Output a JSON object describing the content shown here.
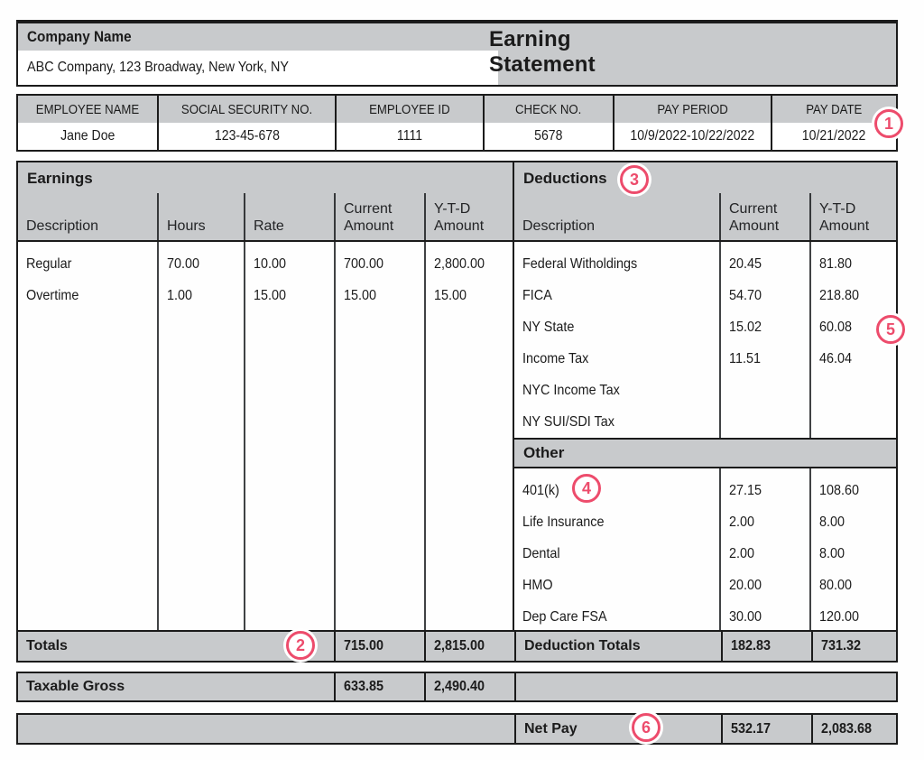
{
  "meta": {
    "accent_color": "#ed4c6c",
    "band_color": "#c8cacc"
  },
  "header": {
    "company_label": "Company Name",
    "company_address": "ABC Company, 123 Broadway, New York, NY",
    "statement_title_line1": "Earning",
    "statement_title_line2": "Statement"
  },
  "employee_info": {
    "headers": [
      "EMPLOYEE NAME",
      "SOCIAL SECURITY NO.",
      "EMPLOYEE ID",
      "CHECK NO.",
      "PAY PERIOD",
      "PAY DATE"
    ],
    "values": [
      "Jane Doe",
      "123-45-678",
      "1111",
      "5678",
      "10/9/2022-10/22/2022",
      "10/21/2022"
    ]
  },
  "earnings": {
    "title": "Earnings",
    "columns": [
      "Description",
      "Hours",
      "Rate",
      "Current Amount",
      "Y-T-D Amount"
    ],
    "rows": [
      {
        "description": "Regular",
        "hours": "70.00",
        "rate": "10.00",
        "current": "700.00",
        "ytd": "2,800.00"
      },
      {
        "description": "Overtime",
        "hours": "1.00",
        "rate": "15.00",
        "current": "15.00",
        "ytd": "15.00"
      }
    ],
    "totals": {
      "label": "Totals",
      "current": "715.00",
      "ytd": "2,815.00"
    },
    "taxable_gross": {
      "label": "Taxable Gross",
      "current": "633.85",
      "ytd": "2,490.40"
    }
  },
  "deductions": {
    "title": "Deductions",
    "columns": [
      "Description",
      "Current Amount",
      "Y-T-D Amount"
    ],
    "rows": [
      {
        "description": "Federal Witholdings",
        "current": "20.45",
        "ytd": "81.80"
      },
      {
        "description": "FICA",
        "current": "54.70",
        "ytd": "218.80"
      },
      {
        "description": "NY State",
        "current": "15.02",
        "ytd": "60.08"
      },
      {
        "description": "Income Tax",
        "current": "11.51",
        "ytd": "46.04"
      },
      {
        "description": "NYC Income Tax",
        "current": "",
        "ytd": ""
      },
      {
        "description": "NY SUI/SDI Tax",
        "current": "",
        "ytd": ""
      }
    ],
    "other": {
      "title": "Other",
      "rows": [
        {
          "description": "401(k)",
          "current": "27.15",
          "ytd": "108.60"
        },
        {
          "description": "Life Insurance",
          "current": "2.00",
          "ytd": "8.00"
        },
        {
          "description": "Dental",
          "current": "2.00",
          "ytd": "8.00"
        },
        {
          "description": "HMO",
          "current": "20.00",
          "ytd": "80.00"
        },
        {
          "description": "Dep Care FSA",
          "current": "30.00",
          "ytd": "120.00"
        }
      ]
    },
    "totals": {
      "label": "Deduction Totals",
      "current": "182.83",
      "ytd": "731.32"
    }
  },
  "net_pay": {
    "label": "Net Pay",
    "current": "532.17",
    "ytd": "2,083.68"
  },
  "callouts": [
    "1",
    "2",
    "3",
    "4",
    "5",
    "6"
  ]
}
